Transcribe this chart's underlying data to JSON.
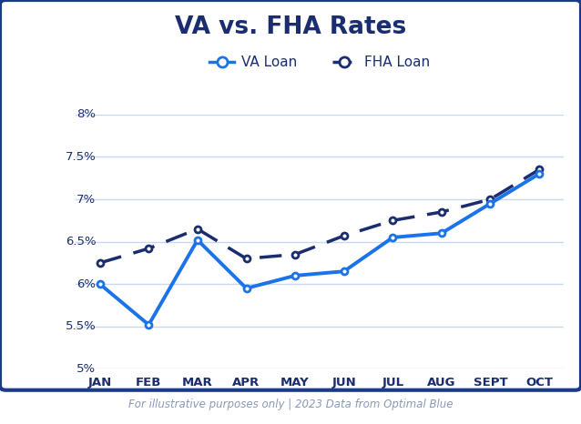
{
  "title": "VA vs. FHA Rates",
  "months": [
    "JAN",
    "FEB",
    "MAR",
    "APR",
    "MAY",
    "JUN",
    "JUL",
    "AUG",
    "SEPT",
    "OCT"
  ],
  "va_loan": [
    6.0,
    5.52,
    6.52,
    5.95,
    6.1,
    6.15,
    6.55,
    6.6,
    6.95,
    7.3
  ],
  "fha_loan": [
    6.25,
    6.42,
    6.65,
    6.3,
    6.35,
    6.57,
    6.75,
    6.85,
    7.0,
    7.35
  ],
  "va_color": "#1a73e8",
  "fha_color": "#1a2d6e",
  "ylim": [
    5.0,
    8.0
  ],
  "yticks": [
    5.0,
    5.5,
    6.0,
    6.5,
    7.0,
    7.5,
    8.0
  ],
  "ytick_labels": [
    "5%",
    "5.5%",
    "6%",
    "6.5%",
    "7%",
    "7.5%",
    "8%"
  ],
  "title_color": "#1a2d6e",
  "background_color": "#ffffff",
  "plot_bg_color": "#ffffff",
  "grid_color": "#c8d8f0",
  "border_color": "#1a3a8a",
  "footer_text": "For illustrative purposes only | 2023 Data from Optimal Blue",
  "footer_color": "#8899bb",
  "footer_bg": "#1a3a8a"
}
